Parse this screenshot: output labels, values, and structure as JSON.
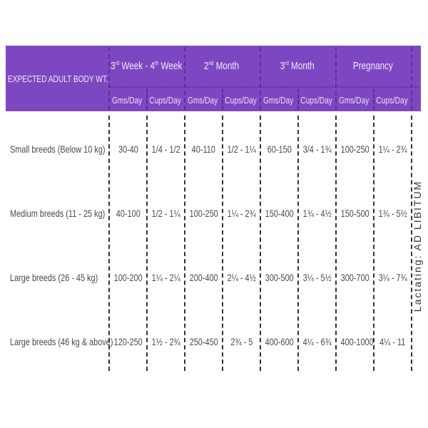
{
  "header": {
    "row_label": "EXPECTED ADULT BODY WT.",
    "groups": [
      {
        "segments": [
          {
            "t": "3"
          },
          {
            "t": "rd",
            "sup": true
          },
          {
            "t": " Week - 4"
          },
          {
            "t": "th",
            "sup": true
          },
          {
            "t": " Week"
          }
        ]
      },
      {
        "segments": [
          {
            "t": "2"
          },
          {
            "t": "nd",
            "sup": true
          },
          {
            "t": " Month"
          }
        ]
      },
      {
        "segments": [
          {
            "t": "3"
          },
          {
            "t": "rd",
            "sup": true
          },
          {
            "t": " Month"
          }
        ]
      },
      {
        "segments": [
          {
            "t": "Pregnancy"
          }
        ]
      }
    ],
    "subcolumns": [
      "Gms/Day",
      "Cups/Day",
      "Gms/Day",
      "Cups/Day",
      "Gms/Day",
      "Cups/Day",
      "Gms/Day",
      "Cups/Day"
    ]
  },
  "rows": [
    {
      "label": "Small breeds (Below 10 kg)",
      "cells": [
        "30-40",
        "1/4 - 1/2",
        "40-110",
        "1/2 - 1¼",
        "60-150",
        "3/4 - 1¾",
        "100-250",
        "1¼ - 2¾"
      ]
    },
    {
      "label": "Medium breeds (11 - 25 kg)",
      "cells": [
        "40-100",
        "1/2 - 1¼",
        "100-250",
        "1¼ - 2¾",
        "150-400",
        "1¾ - 4½",
        "150-500",
        "1¾ - 5½"
      ]
    },
    {
      "label": "Large breeds (26 - 45 kg)",
      "cells": [
        "100-200",
        "1¼ - 2¼",
        "200-400",
        "2¼ - 4½",
        "300-500",
        "3¼ - 5½",
        "300-700",
        "3¼ - 7¾"
      ]
    },
    {
      "label": "Large breeds (46 kg & above)",
      "cells": [
        "120-250",
        "1½ - 2¾",
        "250-450",
        "2¾ - 5",
        "400-600",
        "4¼ - 6¾",
        "400-1000",
        "4¼ - 11"
      ]
    }
  ],
  "side_note": "Lactating: AD LIBITUM",
  "colors": {
    "header_bg": "#7e47c2",
    "header_text": "#f1eaf8",
    "body_text": "#4a4a4a"
  }
}
